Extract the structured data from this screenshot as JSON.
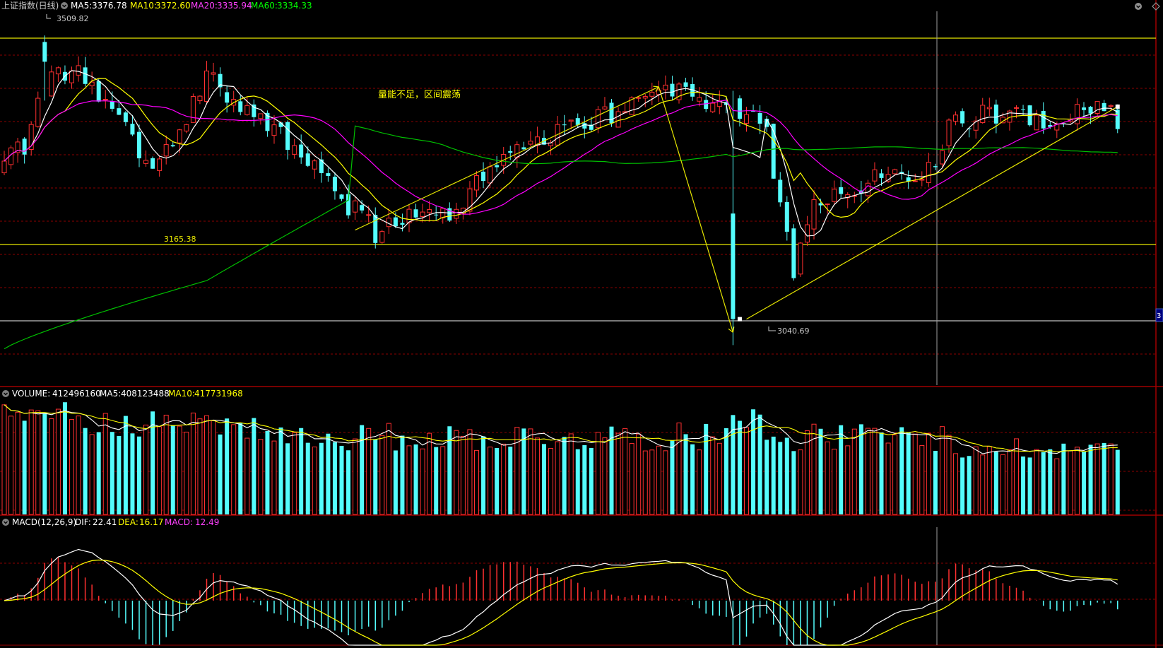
{
  "header": {
    "title": "上证指数(日线)",
    "ma5_label": "MA5:",
    "ma5_value": "3376.78",
    "ma10_label": "MA10:",
    "ma10_value": "3372.60",
    "ma20_label": "MA20:",
    "ma20_value": "3335.94",
    "ma60_label": "MA60:",
    "ma60_value": "3334.33"
  },
  "volume_header": {
    "label": "VOLUME:",
    "value": "412496160",
    "ma5_label": "MA5:",
    "ma5_value": "408123488",
    "ma10_label": "MA10:",
    "ma10_value": "417731968"
  },
  "macd_header": {
    "label": "MACD(12,26,9)",
    "dif_label": "DIF:",
    "dif_value": "22.41",
    "dea_label": "DEA:",
    "dea_value": "16.17",
    "macd_label": "MACD:",
    "macd_value": "12.49"
  },
  "annotations": {
    "note": "量能不足，区间震荡",
    "high": "3509.82",
    "low": "3040.69",
    "support": "3165.38"
  },
  "colors": {
    "up": "#ff3030",
    "down": "#54fcfc",
    "ma5": "#ffffff",
    "ma10": "#ffff00",
    "ma20": "#ff00ff",
    "ma60": "#00c000",
    "grid": "#8b0000",
    "border": "#a00000",
    "hline": "#e6e600"
  },
  "chart_data": {
    "type": "candlestick",
    "y_range": [
      2980,
      3540
    ],
    "anchors": [
      [
        0,
        3330
      ],
      [
        3,
        3350
      ],
      [
        6,
        3430
      ],
      [
        10,
        3470
      ],
      [
        16,
        3400
      ],
      [
        22,
        3300
      ],
      [
        25,
        3340
      ],
      [
        30,
        3450
      ],
      [
        36,
        3400
      ],
      [
        44,
        3340
      ],
      [
        50,
        3270
      ],
      [
        55,
        3210
      ],
      [
        58,
        3235
      ],
      [
        64,
        3245
      ],
      [
        68,
        3255
      ],
      [
        73,
        3325
      ],
      [
        78,
        3340
      ],
      [
        83,
        3370
      ],
      [
        87,
        3385
      ],
      [
        92,
        3395
      ],
      [
        96,
        3425
      ],
      [
        101,
        3435
      ],
      [
        103,
        3410
      ],
      [
        108,
        3400
      ],
      [
        113,
        3360
      ],
      [
        117,
        3160
      ],
      [
        120,
        3240
      ],
      [
        125,
        3270
      ],
      [
        130,
        3295
      ],
      [
        136,
        3290
      ],
      [
        140,
        3370
      ],
      [
        145,
        3390
      ],
      [
        150,
        3385
      ],
      [
        155,
        3375
      ],
      [
        160,
        3400
      ],
      [
        165,
        3388
      ]
    ],
    "ma60_start": 3035,
    "ma60_end": 3334,
    "ma60_days": 52,
    "sessions": 166
  }
}
